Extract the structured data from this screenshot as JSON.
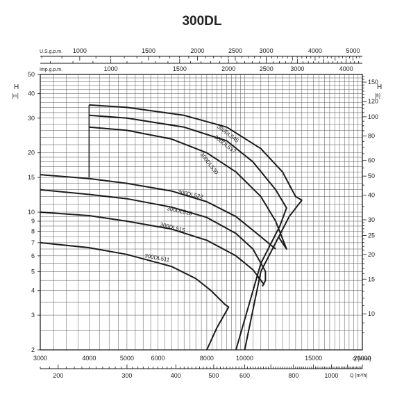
{
  "chart_data": {
    "type": "line",
    "title": "300DL",
    "ylabel_left": "H",
    "ylabel_left_unit": "[m]",
    "ylabel_right": "H",
    "ylabel_right_unit": "[ft]",
    "xlabel_lpm": "Q [l/min]",
    "xlabel_m3h": "Q [m³/h]",
    "top_axis_1_label": "U.S.g.p.m.",
    "top_axis_2_label": "Imp.g.p.m.",
    "y_scale": "log",
    "x_scale": "log",
    "ylim": [
      2,
      50
    ],
    "xlim": [
      3000,
      20000
    ],
    "grid": true,
    "left_ticks": [
      "2",
      "3",
      "4",
      "5",
      "6",
      "7",
      "8",
      "9",
      "10",
      "15",
      "20",
      "30",
      "40",
      "50"
    ],
    "right_ticks": [
      "10",
      "15",
      "20",
      "25",
      "30",
      "40",
      "50",
      "60",
      "80",
      "100",
      "120",
      "150"
    ],
    "bottom_lpm_ticks": [
      "3000",
      "4000",
      "5000",
      "6000",
      "8000",
      "10000",
      "15000",
      "20000"
    ],
    "bottom_m3h_ticks": [
      "200",
      "300",
      "400",
      "500",
      "600",
      "800",
      "1000"
    ],
    "usgpm_ticks": [
      "1000",
      "1500",
      "2000",
      "2500",
      "3000",
      "4000",
      "5000"
    ],
    "impgpm_ticks": [
      "1000",
      "1500",
      "2000",
      "2500",
      "3000",
      "4000"
    ],
    "series": [
      {
        "name": "300DL545",
        "x": [
          4000,
          5000,
          7000,
          9000,
          11000,
          12500,
          13500,
          14000,
          13000,
          11000,
          10000
        ],
        "y": [
          35,
          34,
          31,
          27,
          21,
          16,
          12,
          11.5,
          9.5,
          5,
          2
        ]
      },
      {
        "name": "300DL537",
        "x": [
          4000,
          5000,
          7000,
          9000,
          10500,
          12000,
          12800,
          12300,
          11000,
          9500
        ],
        "y": [
          31,
          30,
          27,
          23,
          18,
          13,
          10.5,
          8.5,
          5.5,
          2
        ]
      },
      {
        "name": "300DL530",
        "x": [
          4000,
          5000,
          6500,
          8000,
          9500,
          11000,
          12000,
          12800,
          12800,
          12200
        ],
        "y": [
          27,
          26,
          23.5,
          20,
          16,
          12,
          9,
          6.5,
          6.5,
          7.5
        ]
      },
      {
        "name": "300DL522",
        "x": [
          3000,
          4000,
          5000,
          6500,
          8000,
          9500,
          11000,
          12000
        ],
        "y": [
          15.5,
          14.8,
          14,
          12.8,
          11.3,
          9.5,
          7.5,
          6.5
        ]
      },
      {
        "name": "300DL518",
        "x": [
          3000,
          4000,
          5000,
          6500,
          8000,
          9500,
          10500,
          11300,
          11300,
          11100
        ],
        "y": [
          13,
          12.3,
          11.7,
          10.6,
          9.4,
          7.8,
          6.5,
          5,
          4.5,
          4.2
        ]
      },
      {
        "name": "300DL515",
        "x": [
          3000,
          4000,
          5000,
          6500,
          8000,
          9500,
          10500,
          11200,
          11200,
          10800
        ],
        "y": [
          10,
          9.6,
          9,
          8.2,
          7.2,
          6,
          5.1,
          4.3,
          4.3,
          4.7
        ]
      },
      {
        "name": "300DL511",
        "x": [
          3000,
          4000,
          5000,
          6500,
          7500,
          8200,
          8900,
          9100,
          8500,
          8000
        ],
        "y": [
          7,
          6.6,
          6.1,
          5.3,
          4.6,
          4,
          3.4,
          3.3,
          2.6,
          2
        ]
      }
    ]
  }
}
